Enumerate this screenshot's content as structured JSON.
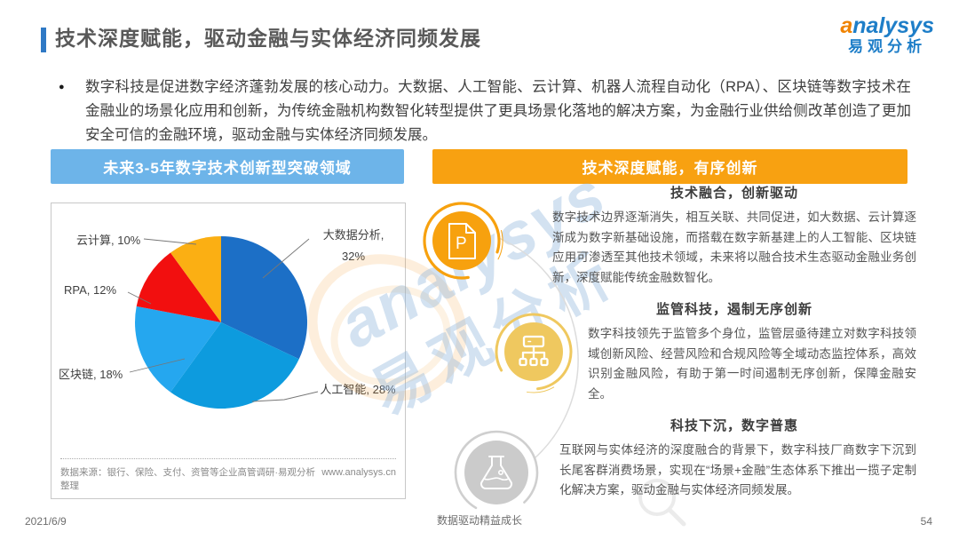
{
  "page": {
    "title": "技术深度赋能，驱动金融与实体经济同频发展",
    "intro": "数字科技是促进数字经济蓬勃发展的核心动力。大数据、人工智能、云计算、机器人流程自动化（RPA）、区块链等数字技术在金融业的场景化应用和创新，为传统金融机构数智化转型提供了更具场景化落地的解决方案，为金融行业供给侧改革创造了更加安全可信的金融环境，驱动金融与实体经济同频发展。",
    "footer": {
      "date": "2021/6/9",
      "slogan": "数据驱动精益成长",
      "page_number": "54"
    }
  },
  "logo": {
    "brand_first": "a",
    "brand_rest": "nalysys",
    "brand_cn": "易观分析"
  },
  "left_panel": {
    "header": "未来3-5年数字技术创新型突破领域",
    "source": "数据来源：银行、保险、支付、资管等企业高管调研·易观分析整理",
    "website": "www.analysys.cn"
  },
  "right_panel": {
    "header": "技术深度赋能，有序创新",
    "sections": [
      {
        "icon": "document-p",
        "title": "技术融合，创新驱动",
        "body": "数字技术边界逐渐消失，相互关联、共同促进，如大数据、云计算逐渐成为数字新基础设施，而搭载在数字新基建上的人工智能、区块链应用可渗透至其他技术领域，未来将以融合技术生态驱动金融业务创新，深度赋能传统金融数智化。"
      },
      {
        "icon": "org-chart",
        "title": "监管科技，遏制无序创新",
        "body": "数字科技领先于监管多个身位，监管层亟待建立对数字科技领域创新风险、经营风险和合规风险等全域动态监控体系，高效识别金融风险，有助于第一时间遏制无序创新，保障金融安全。"
      },
      {
        "icon": "flask",
        "title": "科技下沉，数字普惠",
        "body": "互联网与实体经济的深度融合的背景下，数字科技厂商数字下沉到长尾客群消费场景，实现在“场景+金融”生态体系下推出一揽子定制化解决方案，驱动金融与实体经济同频发展。"
      }
    ]
  },
  "chart_data": {
    "type": "pie",
    "title": "未来3-5年数字技术创新型突破领域",
    "start_angle_deg": 0,
    "direction": "clockwise",
    "legend": "callout-labels",
    "slices": [
      {
        "label": "大数据分析",
        "value": 32,
        "color": "#1C6FC6"
      },
      {
        "label": "人工智能",
        "value": 28,
        "color": "#0D9BDE"
      },
      {
        "label": "区块链",
        "value": 18,
        "color": "#25A7EF"
      },
      {
        "label": "RPA",
        "value": 12,
        "color": "#F20F0F"
      },
      {
        "label": "云计算",
        "value": 10,
        "color": "#FBAF13"
      }
    ]
  },
  "watermark": {
    "text_en": "analysys",
    "text_cn": "易观分析"
  }
}
